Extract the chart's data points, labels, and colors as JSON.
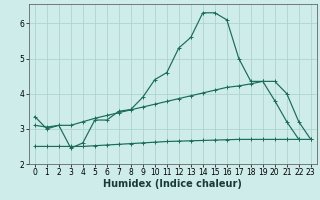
{
  "xlabel": "Humidex (Indice chaleur)",
  "background_color": "#cdecea",
  "grid_color": "#afd4d0",
  "line_color": "#1a6b5a",
  "xlim": [
    -0.5,
    23.5
  ],
  "ylim": [
    2.0,
    6.55
  ],
  "yticks": [
    2,
    3,
    4,
    5,
    6
  ],
  "xticks": [
    0,
    1,
    2,
    3,
    4,
    5,
    6,
    7,
    8,
    9,
    10,
    11,
    12,
    13,
    14,
    15,
    16,
    17,
    18,
    19,
    20,
    21,
    22,
    23
  ],
  "line1_x": [
    0,
    1,
    2,
    3,
    4,
    5,
    6,
    7,
    8,
    9,
    10,
    11,
    12,
    13,
    14,
    15,
    16,
    17,
    18,
    19,
    20,
    21,
    22
  ],
  "line1_y": [
    3.35,
    3.0,
    3.1,
    2.45,
    2.6,
    3.25,
    3.25,
    3.5,
    3.55,
    3.9,
    4.4,
    4.6,
    5.3,
    5.6,
    6.3,
    6.3,
    6.1,
    5.0,
    4.35,
    4.35,
    3.8,
    3.2,
    2.7
  ],
  "line2_x": [
    0,
    1,
    2,
    3,
    4,
    5,
    6,
    7,
    8,
    9,
    10,
    11,
    12,
    13,
    14,
    15,
    16,
    17,
    18,
    19,
    20,
    21,
    22,
    23
  ],
  "line2_y": [
    3.1,
    3.05,
    3.1,
    3.1,
    3.2,
    3.3,
    3.38,
    3.46,
    3.54,
    3.62,
    3.7,
    3.78,
    3.86,
    3.94,
    4.02,
    4.1,
    4.18,
    4.22,
    4.28,
    4.35,
    4.35,
    4.0,
    3.2,
    2.7
  ],
  "line3_x": [
    0,
    1,
    2,
    3,
    4,
    5,
    6,
    7,
    8,
    9,
    10,
    11,
    12,
    13,
    14,
    15,
    16,
    17,
    18,
    19,
    20,
    21,
    22,
    23
  ],
  "line3_y": [
    2.5,
    2.5,
    2.5,
    2.5,
    2.5,
    2.52,
    2.54,
    2.56,
    2.58,
    2.6,
    2.62,
    2.64,
    2.65,
    2.66,
    2.67,
    2.68,
    2.69,
    2.7,
    2.7,
    2.7,
    2.7,
    2.7,
    2.7,
    2.7
  ],
  "spine_color": "#666666",
  "tick_fontsize": 5.5,
  "xlabel_fontsize": 7.0
}
